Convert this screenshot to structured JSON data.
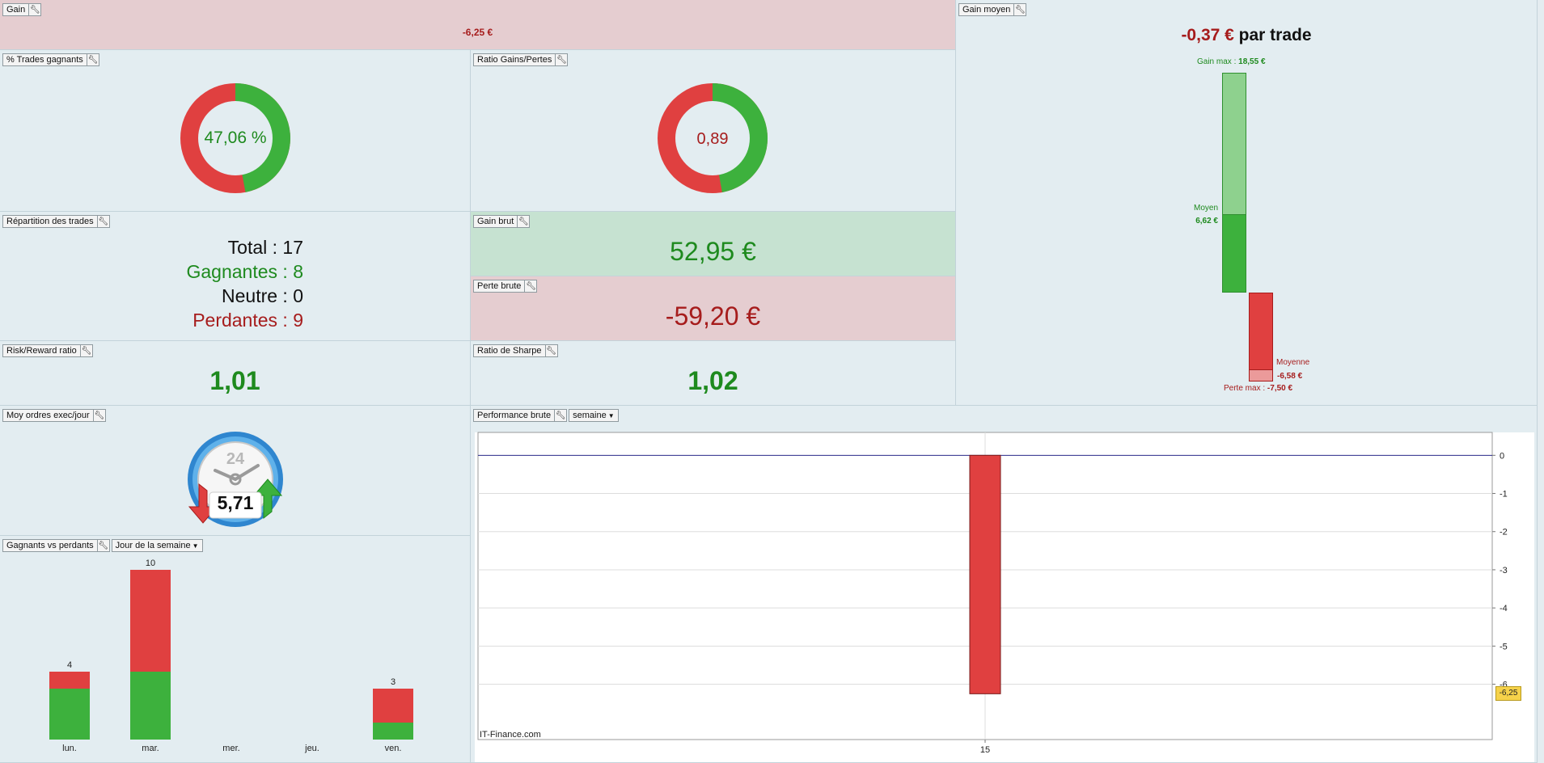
{
  "gain": {
    "title": "Gain",
    "value": "-6,25 €"
  },
  "pct_trades": {
    "title": "% Trades gagnants",
    "value": "47,06 %",
    "fraction": 0.4706
  },
  "ratio_gp": {
    "title": "Ratio Gains/Pertes",
    "value": "0,89",
    "fraction": 0.4722
  },
  "repartition": {
    "title": "Répartition des trades",
    "total": "Total : 17",
    "gagnantes": "Gagnantes : 8",
    "neutre": "Neutre : 0",
    "perdantes": "Perdantes : 9"
  },
  "gain_brut": {
    "title": "Gain brut",
    "value": "52,95 €"
  },
  "perte_brute": {
    "title": "Perte brute",
    "value": "-59,20 €"
  },
  "risk_reward": {
    "title": "Risk/Reward ratio",
    "value": "1,01"
  },
  "sharpe": {
    "title": "Ratio de Sharpe",
    "value": "1,02"
  },
  "gain_moyen": {
    "title": "Gain moyen",
    "headline_value": "-0,37 €",
    "headline_suffix": "par trade",
    "gain_max_label": "Gain max :",
    "gain_max_value": "18,55 €",
    "moyen_label": "Moyen",
    "moyen_value": "6,62 €",
    "moyenne_label": "Moyenne",
    "moyenne_value": "-6,58 €",
    "perte_max_label": "Perte max :",
    "perte_max_value": "-7,50 €",
    "data": {
      "gain_max": 18.55,
      "gain_avg": 6.62,
      "loss_avg": -6.58,
      "loss_max": -7.5
    }
  },
  "moy_ordres": {
    "title": "Moy ordres exec/jour",
    "clock_label": "24",
    "value": "5,71"
  },
  "gv": {
    "title": "Gagnants vs perdants",
    "dropdown": "Jour de la semaine"
  },
  "perf": {
    "title": "Performance brute",
    "dropdown": "semaine",
    "watermark": "IT-Finance.com",
    "value_tag": "-6,25"
  },
  "colors": {
    "green": "#3db13d",
    "red": "#e04040",
    "dark_green": "#1e8a1e",
    "dark_red": "#a61c1c",
    "light_green": "#8ed18e",
    "light_red": "#eb9a9a"
  },
  "chart_data": [
    {
      "type": "bar",
      "stacked": true,
      "categories": [
        "lun.",
        "mar.",
        "mer.",
        "jeu.",
        "ven."
      ],
      "series": [
        {
          "values": [
            3,
            4,
            0,
            0,
            1
          ],
          "color": "#3db13d"
        },
        {
          "values": [
            1,
            6,
            0,
            0,
            2
          ],
          "color": "#e04040"
        }
      ],
      "totals": [
        "4",
        "10",
        "",
        "",
        "3"
      ],
      "ylim": [
        0,
        10
      ]
    },
    {
      "type": "bar",
      "categories": [
        "15"
      ],
      "values": [
        -6.25
      ],
      "yticks": [
        "0",
        "-1",
        "-2",
        "-3",
        "-4",
        "-5",
        "-6"
      ],
      "ylim": [
        -7.45,
        0.6
      ],
      "grid": true
    }
  ]
}
